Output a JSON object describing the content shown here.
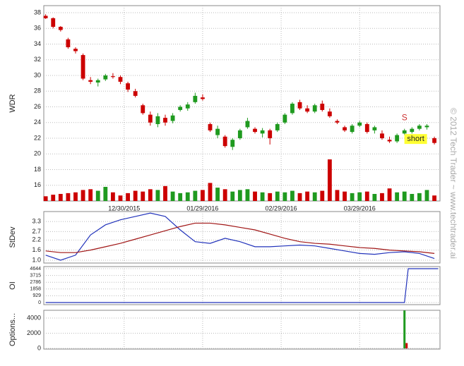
{
  "watermark": "© 2012 Tech Trader ~ www.techtrader.ai",
  "chart_data": [
    {
      "type": "candlestick",
      "y_label": "WDR",
      "x": [
        0,
        2,
        4,
        6,
        8,
        10,
        12,
        14,
        16,
        18,
        20,
        22,
        24,
        26,
        28,
        30,
        32,
        34,
        36,
        38,
        40,
        42,
        44,
        46,
        48,
        50,
        52,
        54,
        56,
        58,
        60,
        62,
        64,
        66,
        68,
        70,
        72,
        74,
        76,
        78,
        80,
        82,
        84,
        86,
        88,
        90,
        92,
        94,
        96,
        98,
        100,
        102,
        104
      ],
      "ohlc": [
        [
          37.6,
          37.8,
          37.2,
          37.3
        ],
        [
          37.3,
          37.4,
          36.0,
          36.2
        ],
        [
          36.2,
          36.3,
          35.6,
          35.8
        ],
        [
          34.6,
          34.8,
          33.4,
          33.6
        ],
        [
          33.4,
          33.6,
          32.8,
          33.1
        ],
        [
          32.6,
          32.8,
          29.4,
          29.6
        ],
        [
          29.4,
          29.8,
          28.9,
          29.2
        ],
        [
          29.1,
          29.6,
          28.6,
          29.4
        ],
        [
          29.5,
          30.2,
          29.3,
          30.0
        ],
        [
          29.9,
          30.3,
          29.6,
          29.8
        ],
        [
          29.8,
          30.0,
          28.9,
          29.2
        ],
        [
          29.0,
          29.2,
          27.9,
          28.2
        ],
        [
          28.0,
          28.3,
          27.2,
          27.4
        ],
        [
          26.2,
          26.4,
          25.0,
          25.2
        ],
        [
          25.0,
          25.4,
          23.6,
          24.0
        ],
        [
          23.8,
          25.2,
          23.4,
          24.8
        ],
        [
          24.6,
          25.0,
          23.6,
          24.0
        ],
        [
          24.2,
          25.2,
          23.9,
          24.9
        ],
        [
          25.6,
          26.2,
          25.4,
          26.0
        ],
        [
          25.8,
          26.6,
          25.5,
          26.3
        ],
        [
          26.6,
          27.8,
          26.4,
          27.4
        ],
        [
          27.2,
          27.6,
          26.8,
          27.0
        ],
        [
          23.8,
          24.0,
          22.8,
          23.0
        ],
        [
          22.4,
          23.6,
          22.0,
          23.2
        ],
        [
          22.2,
          22.4,
          20.8,
          21.0
        ],
        [
          20.9,
          22.0,
          20.5,
          21.8
        ],
        [
          22.0,
          23.2,
          21.8,
          23.0
        ],
        [
          23.4,
          24.6,
          23.2,
          24.2
        ],
        [
          23.2,
          23.4,
          22.6,
          22.8
        ],
        [
          22.6,
          23.3,
          22.1,
          23.0
        ],
        [
          23.0,
          23.2,
          21.2,
          22.0
        ],
        [
          23.0,
          24.0,
          22.8,
          23.8
        ],
        [
          24.0,
          25.2,
          23.8,
          25.0
        ],
        [
          25.2,
          26.6,
          25.0,
          26.4
        ],
        [
          26.6,
          26.9,
          25.6,
          25.8
        ],
        [
          25.8,
          26.2,
          25.2,
          25.4
        ],
        [
          25.4,
          26.4,
          25.2,
          26.2
        ],
        [
          26.4,
          26.8,
          25.4,
          25.6
        ],
        [
          25.4,
          25.8,
          24.6,
          24.8
        ],
        [
          24.2,
          24.4,
          23.8,
          24.0
        ],
        [
          23.4,
          23.6,
          22.8,
          23.0
        ],
        [
          22.8,
          23.8,
          22.6,
          23.6
        ],
        [
          23.6,
          24.2,
          23.4,
          24.0
        ],
        [
          23.8,
          24.0,
          22.6,
          22.8
        ],
        [
          23.0,
          23.6,
          22.6,
          23.4
        ],
        [
          22.6,
          23.0,
          21.8,
          22.0
        ],
        [
          21.8,
          22.2,
          21.4,
          21.6
        ],
        [
          21.6,
          22.6,
          21.4,
          22.4
        ],
        [
          22.6,
          23.2,
          22.4,
          23.0
        ],
        [
          22.8,
          23.4,
          22.6,
          23.2
        ],
        [
          23.2,
          23.8,
          23.0,
          23.6
        ],
        [
          23.4,
          23.8,
          23.1,
          23.6
        ],
        [
          22.0,
          22.2,
          21.2,
          21.4
        ]
      ],
      "volume": [
        14.6,
        14.8,
        14.9,
        15.0,
        15.1,
        15.4,
        15.5,
        15.3,
        15.8,
        15.1,
        14.7,
        15.0,
        15.3,
        15.2,
        15.5,
        15.4,
        15.9,
        15.2,
        15.0,
        15.1,
        15.3,
        15.4,
        16.3,
        15.7,
        15.5,
        15.2,
        15.4,
        15.5,
        15.2,
        15.1,
        15.0,
        15.2,
        15.1,
        15.3,
        15.0,
        15.2,
        15.1,
        15.3,
        19.3,
        15.4,
        15.2,
        15.0,
        15.1,
        15.2,
        14.9,
        15.0,
        15.6,
        15.1,
        15.2,
        14.9,
        15.0,
        15.4,
        14.7
      ],
      "up_color": "#1f9a1f",
      "down_color": "#cc0000",
      "xlim": [
        -0.5,
        105.5
      ],
      "ylim": [
        14,
        38.9
      ],
      "yticks": [
        16,
        18,
        20,
        22,
        24,
        26,
        28,
        30,
        32,
        34,
        36,
        38
      ],
      "xticks": [
        {
          "value": 21,
          "label": "12/30/2015"
        },
        {
          "value": 42,
          "label": "01/29/2016"
        },
        {
          "value": 63,
          "label": "02/29/2016"
        },
        {
          "value": 84,
          "label": "03/29/2016"
        }
      ],
      "grid": true,
      "annotations": [
        {
          "text": "S",
          "x": 96,
          "y": 24.6,
          "color": "#cc3333"
        },
        {
          "text": "short",
          "x": 99,
          "y": 21.9,
          "color": "#ffff33"
        }
      ]
    },
    {
      "type": "line",
      "y_label": "StDev",
      "x": [
        0,
        4,
        8,
        12,
        16,
        20,
        24,
        28,
        32,
        36,
        40,
        44,
        48,
        52,
        56,
        60,
        64,
        68,
        72,
        76,
        80,
        84,
        88,
        92,
        96,
        100,
        104
      ],
      "series": [
        {
          "color": "#2233bb",
          "values": [
            1.3,
            1.0,
            1.3,
            2.5,
            3.1,
            3.4,
            3.6,
            3.8,
            3.6,
            2.8,
            2.1,
            2.0,
            2.3,
            2.1,
            1.8,
            1.8,
            1.85,
            1.9,
            1.85,
            1.7,
            1.55,
            1.4,
            1.35,
            1.45,
            1.5,
            1.4,
            1.1
          ]
        },
        {
          "color": "#a01515",
          "values": [
            1.55,
            1.45,
            1.45,
            1.6,
            1.8,
            2.0,
            2.25,
            2.5,
            2.75,
            3.0,
            3.2,
            3.2,
            3.1,
            2.95,
            2.8,
            2.55,
            2.3,
            2.1,
            2.0,
            1.95,
            1.85,
            1.75,
            1.7,
            1.6,
            1.55,
            1.5,
            1.4
          ]
        }
      ],
      "xlim": [
        -0.5,
        105.5
      ],
      "ylim": [
        0.83,
        3.89
      ],
      "yticks": [
        {
          "value": 1,
          "label": "1.0"
        },
        1.6,
        2.2,
        2.7,
        3.3
      ],
      "grid": true
    },
    {
      "type": "line",
      "y_label": "OI",
      "x": [
        0,
        96,
        97,
        105
      ],
      "series": [
        {
          "color": "#2233bb",
          "values": [
            0,
            0,
            4644,
            4644
          ]
        }
      ],
      "xlim": [
        -0.5,
        105.5
      ],
      "ylim": [
        -290,
        4934
      ],
      "yticks": [
        0,
        929,
        1858,
        2786,
        3715,
        4644
      ],
      "grid": true
    },
    {
      "type": "bar",
      "y_label": "Options...",
      "x": [
        96
      ],
      "series": [
        {
          "color": "#1f9a1f",
          "values": [
            5000
          ]
        },
        {
          "color": "#cc0000",
          "values": [
            700
          ]
        }
      ],
      "xlim": [
        -0.5,
        105.5
      ],
      "ylim": [
        -93,
        5023
      ],
      "yticks": [
        0,
        2000,
        4000
      ],
      "grid": true
    }
  ]
}
